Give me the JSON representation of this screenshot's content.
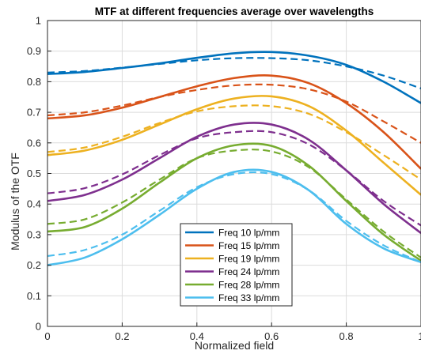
{
  "chart_data": {
    "type": "line",
    "title": "MTF at different frequencies average over wavelengths",
    "xlabel": "Normalized field",
    "ylabel": "Modulus of the OTF",
    "xlim": [
      0,
      1
    ],
    "ylim": [
      0,
      1
    ],
    "xticks": [
      "0",
      "0.2",
      "0.4",
      "0.6",
      "0.8",
      "1"
    ],
    "yticks": [
      "0",
      "0.1",
      "0.2",
      "0.3",
      "0.4",
      "0.5",
      "0.6",
      "0.7",
      "0.8",
      "0.9",
      "1"
    ],
    "grid": true,
    "legend_position": "bottom-center",
    "x": [
      0,
      0.1,
      0.2,
      0.3,
      0.4,
      0.5,
      0.6,
      0.7,
      0.8,
      0.9,
      1.0
    ],
    "series": [
      {
        "name": "Freq 10 lp/mm",
        "color": "#0072BD",
        "solid": [
          0.825,
          0.832,
          0.845,
          0.86,
          0.878,
          0.893,
          0.897,
          0.885,
          0.855,
          0.8,
          0.73
        ],
        "dashed": [
          0.83,
          0.835,
          0.846,
          0.858,
          0.87,
          0.877,
          0.877,
          0.87,
          0.85,
          0.82,
          0.778
        ]
      },
      {
        "name": "Freq 15 lp/mm",
        "color": "#D95319",
        "solid": [
          0.68,
          0.69,
          0.715,
          0.75,
          0.785,
          0.812,
          0.82,
          0.795,
          0.73,
          0.635,
          0.515
        ],
        "dashed": [
          0.69,
          0.7,
          0.722,
          0.75,
          0.773,
          0.788,
          0.79,
          0.775,
          0.735,
          0.67,
          0.6
        ]
      },
      {
        "name": "Freq 19 lp/mm",
        "color": "#EDB120",
        "solid": [
          0.56,
          0.575,
          0.61,
          0.66,
          0.71,
          0.745,
          0.752,
          0.72,
          0.64,
          0.535,
          0.43
        ],
        "dashed": [
          0.57,
          0.585,
          0.62,
          0.665,
          0.703,
          0.72,
          0.72,
          0.695,
          0.635,
          0.56,
          0.48
        ]
      },
      {
        "name": "Freq 24 lp/mm",
        "color": "#7E2F8E",
        "solid": [
          0.41,
          0.43,
          0.48,
          0.55,
          0.62,
          0.66,
          0.66,
          0.61,
          0.51,
          0.4,
          0.305
        ],
        "dashed": [
          0.435,
          0.452,
          0.497,
          0.56,
          0.615,
          0.635,
          0.635,
          0.595,
          0.51,
          0.41,
          0.33
        ]
      },
      {
        "name": "Freq 28 lp/mm",
        "color": "#77AC30",
        "solid": [
          0.31,
          0.325,
          0.385,
          0.47,
          0.55,
          0.592,
          0.59,
          0.525,
          0.41,
          0.3,
          0.215
        ],
        "dashed": [
          0.335,
          0.35,
          0.405,
          0.48,
          0.55,
          0.575,
          0.572,
          0.52,
          0.415,
          0.31,
          0.225
        ]
      },
      {
        "name": "Freq 33 lp/mm",
        "color": "#4DBEEE",
        "solid": [
          0.2,
          0.225,
          0.285,
          0.365,
          0.45,
          0.505,
          0.505,
          0.445,
          0.335,
          0.255,
          0.21
        ],
        "dashed": [
          0.23,
          0.25,
          0.3,
          0.378,
          0.455,
          0.498,
          0.498,
          0.445,
          0.345,
          0.265,
          0.21
        ]
      }
    ]
  }
}
